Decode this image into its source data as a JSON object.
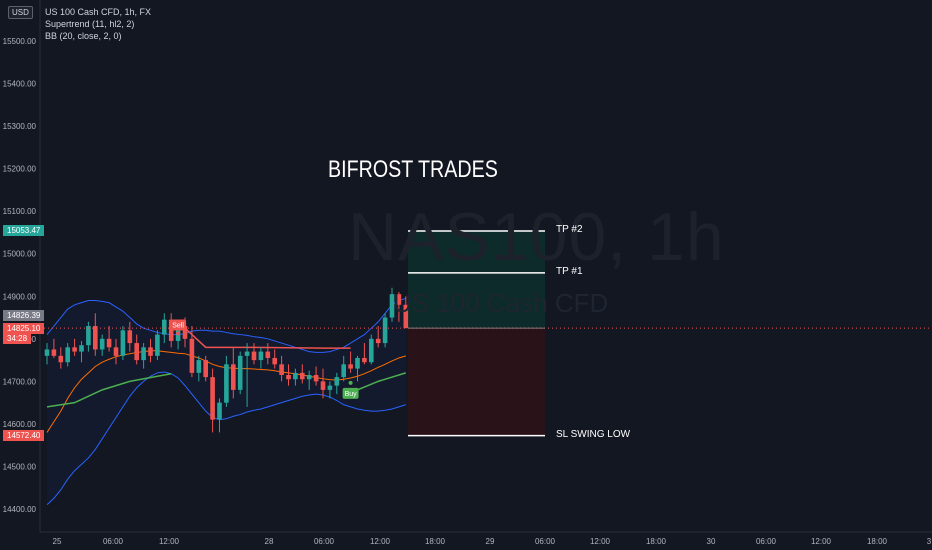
{
  "header": {
    "currency_label": "USD",
    "legend": [
      "US 100 Cash CFD, 1h, FX",
      "Supertrend (11, hl2, 2)",
      "BB (20, close, 2, 0)"
    ]
  },
  "watermark": {
    "symbol": "NAS100, 1h",
    "name": "US 100 Cash CFD"
  },
  "title": "BIFROST TRADES",
  "levels": {
    "tp2": "TP #2",
    "tp1": "TP #1",
    "sl": "SL SWING LOW"
  },
  "price_tags": [
    {
      "label": "15053.47",
      "color": "#26a69a"
    },
    {
      "label": "14826.39",
      "color": "#787b86"
    },
    {
      "label": "14825.10",
      "color": "#ef5350"
    },
    {
      "label": "34:28",
      "color": "#ef5350"
    },
    {
      "label": "14572.40",
      "color": "#ef5350"
    }
  ],
  "signals": {
    "sell": "Sell",
    "buy": "Buy"
  },
  "colors": {
    "background": "#131722",
    "up": "#26a69a",
    "down": "#ef5350",
    "bb_band": "#2962ff",
    "bb_basis": "#ff6d00",
    "supertrend_up": "#4caf50",
    "supertrend_down": "#ef5350",
    "target_zone": "#0d2b2a",
    "stop_zone": "#2a1318"
  },
  "chart_data": {
    "type": "candlestick",
    "ylim": [
      14360,
      15560
    ],
    "y_ticks": [
      "15500.00",
      "15400.00",
      "15300.00",
      "15200.00",
      "15100.00",
      "15000.00",
      "14900.00",
      "14800.00",
      "14700.00",
      "14600.00",
      "14500.00",
      "14400.00"
    ],
    "x_ticks": [
      "25",
      "06:00",
      "12:00",
      "28",
      "06:00",
      "12:00",
      "18:00",
      "29",
      "06:00",
      "12:00",
      "18:00",
      "30",
      "06:00",
      "12:00",
      "18:00",
      "3"
    ],
    "candles": [
      [
        14760,
        14790,
        14740,
        14775
      ],
      [
        14775,
        14800,
        14755,
        14760
      ],
      [
        14760,
        14780,
        14730,
        14745
      ],
      [
        14745,
        14790,
        14735,
        14780
      ],
      [
        14780,
        14800,
        14760,
        14770
      ],
      [
        14770,
        14795,
        14745,
        14785
      ],
      [
        14785,
        14840,
        14770,
        14830
      ],
      [
        14830,
        14860,
        14760,
        14775
      ],
      [
        14775,
        14810,
        14760,
        14800
      ],
      [
        14800,
        14830,
        14770,
        14780
      ],
      [
        14780,
        14800,
        14740,
        14760
      ],
      [
        14760,
        14830,
        14750,
        14820
      ],
      [
        14820,
        14840,
        14770,
        14790
      ],
      [
        14790,
        14810,
        14740,
        14750
      ],
      [
        14750,
        14790,
        14730,
        14780
      ],
      [
        14780,
        14800,
        14745,
        14760
      ],
      [
        14760,
        14820,
        14750,
        14810
      ],
      [
        14810,
        14860,
        14790,
        14845
      ],
      [
        14845,
        14860,
        14780,
        14795
      ],
      [
        14795,
        14840,
        14775,
        14830
      ],
      [
        14830,
        14850,
        14780,
        14800
      ],
      [
        14800,
        14830,
        14710,
        14720
      ],
      [
        14720,
        14760,
        14700,
        14750
      ],
      [
        14750,
        14760,
        14700,
        14710
      ],
      [
        14710,
        14730,
        14580,
        14610
      ],
      [
        14610,
        14660,
        14580,
        14650
      ],
      [
        14650,
        14760,
        14640,
        14740
      ],
      [
        14740,
        14780,
        14660,
        14680
      ],
      [
        14680,
        14770,
        14670,
        14760
      ],
      [
        14760,
        14790,
        14640,
        14770
      ],
      [
        14770,
        14790,
        14740,
        14750
      ],
      [
        14750,
        14780,
        14730,
        14770
      ],
      [
        14770,
        14790,
        14740,
        14755
      ],
      [
        14755,
        14775,
        14730,
        14740
      ],
      [
        14740,
        14760,
        14700,
        14715
      ],
      [
        14715,
        14740,
        14690,
        14705
      ],
      [
        14705,
        14730,
        14690,
        14720
      ],
      [
        14720,
        14740,
        14695,
        14705
      ],
      [
        14705,
        14725,
        14680,
        14715
      ],
      [
        14715,
        14735,
        14690,
        14700
      ],
      [
        14700,
        14730,
        14660,
        14680
      ],
      [
        14680,
        14700,
        14660,
        14690
      ],
      [
        14690,
        14720,
        14670,
        14710
      ],
      [
        14710,
        14760,
        14700,
        14740
      ],
      [
        14740,
        14770,
        14720,
        14730
      ],
      [
        14730,
        14760,
        14700,
        14755
      ],
      [
        14755,
        14790,
        14740,
        14745
      ],
      [
        14745,
        14810,
        14740,
        14800
      ],
      [
        14800,
        14830,
        14780,
        14790
      ],
      [
        14790,
        14860,
        14780,
        14850
      ],
      [
        14850,
        14920,
        14840,
        14905
      ],
      [
        14905,
        14910,
        14840,
        14880
      ],
      [
        14880,
        14900,
        14830,
        14825
      ]
    ],
    "bb_upper": [
      14810,
      14830,
      14850,
      14870,
      14880,
      14885,
      14890,
      14890,
      14888,
      14885,
      14875,
      14865,
      14850,
      14835,
      14825,
      14820,
      14815,
      14812,
      14810,
      14810,
      14812,
      14818,
      14820,
      14820,
      14818,
      14818,
      14815,
      14812,
      14810,
      14808,
      14805,
      14803,
      14800,
      14795,
      14790,
      14785,
      14780,
      14775,
      14770,
      14768,
      14768,
      14770,
      14775,
      14780,
      14790,
      14800,
      14810,
      14825,
      14840,
      14860,
      14880,
      14890,
      14895
    ],
    "bb_basis": [
      14580,
      14605,
      14630,
      14660,
      14685,
      14705,
      14720,
      14735,
      14745,
      14752,
      14758,
      14762,
      14765,
      14768,
      14770,
      14772,
      14772,
      14770,
      14768,
      14766,
      14765,
      14760,
      14755,
      14748,
      14740,
      14735,
      14732,
      14731,
      14730,
      14730,
      14729,
      14728,
      14727,
      14725,
      14722,
      14720,
      14718,
      14715,
      14712,
      14709,
      14706,
      14704,
      14703,
      14705,
      14708,
      14712,
      14718,
      14725,
      14733,
      14740,
      14748,
      14755,
      14760
    ],
    "bb_lower": [
      14410,
      14425,
      14445,
      14470,
      14490,
      14505,
      14520,
      14540,
      14565,
      14590,
      14615,
      14640,
      14665,
      14685,
      14700,
      14712,
      14720,
      14722,
      14718,
      14708,
      14690,
      14670,
      14650,
      14630,
      14615,
      14610,
      14612,
      14618,
      14622,
      14628,
      14632,
      14635,
      14640,
      14645,
      14650,
      14655,
      14660,
      14665,
      14668,
      14670,
      14668,
      14663,
      14655,
      14645,
      14640,
      14635,
      14632,
      14630,
      14630,
      14632,
      14635,
      14640,
      14645
    ],
    "supertrend": [
      {
        "x": 0,
        "y": 14640,
        "dir": "up"
      },
      {
        "x": 4,
        "y": 14650,
        "dir": "up"
      },
      {
        "x": 8,
        "y": 14680,
        "dir": "up"
      },
      {
        "x": 12,
        "y": 14700,
        "dir": "up"
      },
      {
        "x": 16,
        "y": 14712,
        "dir": "up"
      },
      {
        "x": 18,
        "y": 14718,
        "dir": "up"
      },
      {
        "x": 19,
        "y": 14840,
        "dir": "down"
      },
      {
        "x": 23,
        "y": 14780,
        "dir": "down"
      },
      {
        "x": 30,
        "y": 14780,
        "dir": "down"
      },
      {
        "x": 40,
        "y": 14778,
        "dir": "down"
      },
      {
        "x": 44,
        "y": 14778,
        "dir": "down"
      },
      {
        "x": 45,
        "y": 14680,
        "dir": "up"
      },
      {
        "x": 48,
        "y": 14700,
        "dir": "up"
      },
      {
        "x": 52,
        "y": 14720,
        "dir": "up"
      }
    ],
    "sell_index": 19,
    "buy_index": 44,
    "position": {
      "entry": 14825.1,
      "tp1": 14955,
      "tp2": 15053.47,
      "sl": 14572.4
    }
  }
}
